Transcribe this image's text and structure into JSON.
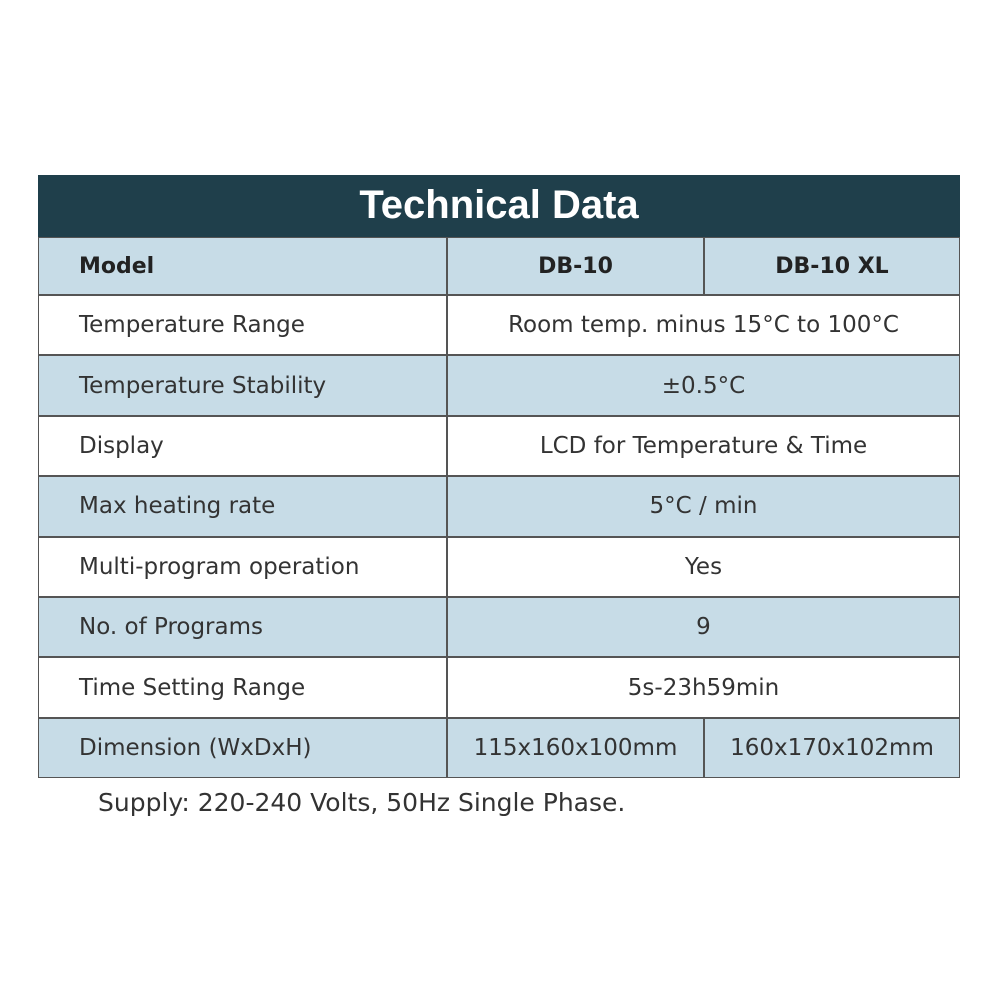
{
  "title": "Technical Data",
  "table": {
    "header": [
      "Model",
      "DB-10",
      "DB-10 XL"
    ],
    "rows": [
      [
        "Temperature Range",
        "Room temp. minus 15°C to 100°C"
      ],
      [
        "Temperature Stability",
        "±0.5°C"
      ],
      [
        "Display",
        "LCD for Temperature & Time"
      ],
      [
        "Max heating rate",
        "5°C / min"
      ],
      [
        "Multi-program operation",
        "Yes"
      ],
      [
        "No. of Programs",
        "9"
      ],
      [
        "Time Setting Range",
        "5s-23h59min"
      ],
      [
        "Dimension (WxDxH)",
        "115x160x100mm",
        "160x170x102mm"
      ]
    ]
  },
  "footer": "Supply: 220-240 Volts, 50Hz Single Phase."
}
